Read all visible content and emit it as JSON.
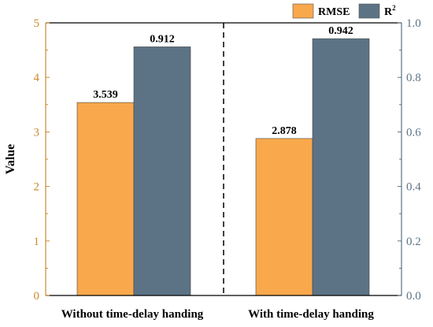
{
  "chart_data": {
    "type": "bar",
    "title": "",
    "categories": [
      "Without time-delay handing",
      "With time-delay handing"
    ],
    "series": [
      {
        "name": "RMSE",
        "axis": "left",
        "color": "#F9A84C",
        "values": [
          3.539,
          2.878
        ],
        "labels": [
          "3.539",
          "2.878"
        ]
      },
      {
        "name": "R",
        "name_superscript": "2",
        "axis": "right",
        "color": "#5C7385",
        "values": [
          0.912,
          0.942
        ],
        "labels": [
          "0.912",
          "0.942"
        ]
      }
    ],
    "y_left": {
      "label": "Value",
      "range": [
        0,
        5
      ],
      "ticks": [
        "0",
        "1",
        "2",
        "3",
        "4",
        "5"
      ],
      "color": "#C98A2E"
    },
    "y_right": {
      "label": "",
      "range": [
        0,
        1.0
      ],
      "ticks": [
        "0.0",
        "0.2",
        "0.4",
        "0.6",
        "0.8",
        "1.0"
      ],
      "color": "#5C7385"
    },
    "xlabel": "",
    "grid": false,
    "legend": "top-right",
    "separator": "dashed vertical line between categories"
  }
}
